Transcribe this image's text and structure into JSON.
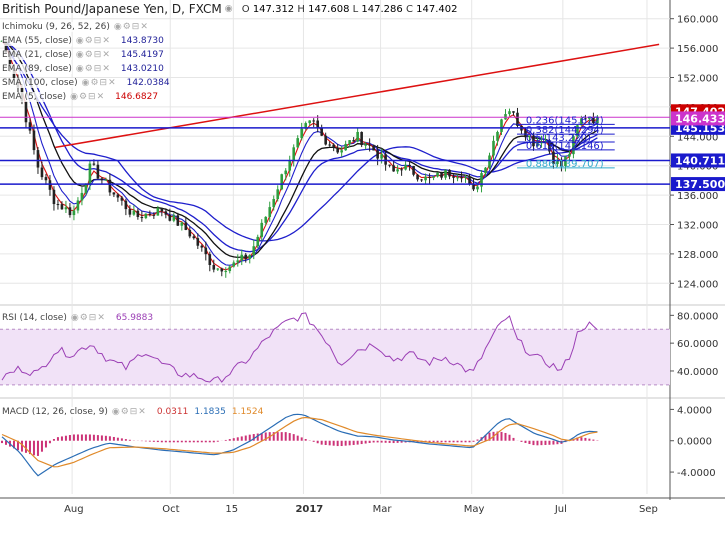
{
  "header": {
    "title": "British Pound/Japanese Yen, D, FXCM",
    "ohlc": {
      "o_label": "O",
      "o": "147.312",
      "h_label": "H",
      "h": "147.608",
      "l_label": "L",
      "l": "147.286",
      "c_label": "C",
      "c": "147.402"
    }
  },
  "legends": {
    "main": [
      {
        "label": "Ichimoku (9, 26, 52, 26)",
        "value": "",
        "color": "#222222"
      },
      {
        "label": "EMA (55, close)",
        "value": "143.8730",
        "color": "#222299"
      },
      {
        "label": "EMA (21, close)",
        "value": "145.4197",
        "color": "#222299"
      },
      {
        "label": "EMA (89, close)",
        "value": "143.0210",
        "color": "#222299"
      },
      {
        "label": "SMA (100, close)",
        "value": "142.0384",
        "color": "#222299"
      },
      {
        "label": "EMA (5, close)",
        "value": "146.6827",
        "color": "#cc0000"
      }
    ],
    "rsi": {
      "label": "RSI (14, close)",
      "value": "65.9883",
      "color": "#444444"
    },
    "macd": {
      "label": "MACD (12, 26, close, 9)",
      "v1": "0.0311",
      "v2": "1.1835",
      "v3": "1.1524",
      "c1": "#cc3333",
      "c2": "#2a6db5",
      "c3": "#e08a2a"
    }
  },
  "chart_data": [
    {
      "type": "candlestick",
      "title": "British Pound/Japanese Yen, D, FXCM",
      "ylim": [
        122,
        162
      ],
      "ticks_y": [
        124,
        128,
        132,
        136,
        140,
        144,
        148,
        152,
        156,
        160
      ],
      "ticks_y_labels": [
        "124.000",
        "128.000",
        "132.000",
        "136.000",
        "140.000",
        "144.000",
        "148.000",
        "152.000",
        "156.000",
        "160.000"
      ],
      "x_tick_labels": [
        "Aug",
        "Oct",
        "15",
        "2017",
        "Mar",
        "May",
        "Jul",
        "Sep"
      ],
      "close_path": [
        [
          0,
          157
        ],
        [
          4,
          150
        ],
        [
          8,
          140
        ],
        [
          12,
          135
        ],
        [
          16,
          133.5
        ],
        [
          20,
          140
        ],
        [
          24,
          137
        ],
        [
          30,
          133
        ],
        [
          36,
          134
        ],
        [
          42,
          131
        ],
        [
          48,
          126
        ],
        [
          52,
          126.5
        ],
        [
          56,
          128
        ],
        [
          60,
          134
        ],
        [
          64,
          140
        ],
        [
          68,
          145
        ],
        [
          70,
          146
        ],
        [
          72,
          144
        ],
        [
          76,
          142
        ],
        [
          80,
          144
        ],
        [
          84,
          142
        ],
        [
          88,
          139
        ],
        [
          90,
          140
        ],
        [
          96,
          138
        ],
        [
          100,
          139
        ],
        [
          104,
          139
        ],
        [
          106,
          136
        ],
        [
          110,
          142
        ],
        [
          112,
          146
        ],
        [
          114,
          148
        ],
        [
          116,
          146
        ],
        [
          120,
          143
        ],
        [
          122,
          144
        ],
        [
          124,
          141
        ],
        [
          126,
          140
        ],
        [
          128,
          142
        ],
        [
          130,
          146
        ],
        [
          132,
          147
        ],
        [
          134,
          146
        ],
        [
          135,
          147.4
        ]
      ],
      "horizontal_levels": [
        {
          "value": 145.153,
          "label": "145.153",
          "color": "#1a1acc"
        },
        {
          "value": 140.711,
          "label": "140.711",
          "color": "#1a1acc"
        },
        {
          "value": 137.5,
          "label": "137.500",
          "color": "#1a1acc"
        },
        {
          "value": 146.6,
          "label": "",
          "color": "#cc33cc"
        }
      ],
      "price_labels": [
        {
          "value": 147.402,
          "label": "147.402",
          "color": "#cc0000"
        },
        {
          "value": 146.433,
          "label": "146.433",
          "color": "#cc33cc"
        }
      ],
      "fib_levels": [
        {
          "ratio": "0.236",
          "value": 145.622,
          "label": "0.236(145.622)",
          "color": "#1a1acc"
        },
        {
          "ratio": "0.382",
          "value": 144.294,
          "label": "0.382(144.294)",
          "color": "#1a1acc"
        },
        {
          "ratio": "0.5",
          "value": 143.22,
          "label": "0.5(143.220)",
          "color": "#1a1acc"
        },
        {
          "ratio": "0.618",
          "value": 142.146,
          "label": "0.618(142.146)",
          "color": "#1a1acc"
        },
        {
          "ratio": "0.886",
          "value": 139.707,
          "label": "0.886(139.707)",
          "color": "#33aacc"
        }
      ],
      "trendline": {
        "from": [
          12,
          142.5
        ],
        "to": [
          148,
          156.5
        ],
        "color": "#dd1111"
      }
    },
    {
      "type": "line",
      "name": "RSI (14, close)",
      "ylim": [
        22,
        86
      ],
      "ticks_y": [
        40,
        60,
        80
      ],
      "ticks_y_labels": [
        "40.0000",
        "60.0000",
        "80.0000"
      ],
      "band": [
        30,
        70
      ],
      "values": [
        [
          0,
          35
        ],
        [
          4,
          42
        ],
        [
          8,
          38
        ],
        [
          12,
          55
        ],
        [
          16,
          52
        ],
        [
          20,
          60
        ],
        [
          24,
          48
        ],
        [
          28,
          42
        ],
        [
          32,
          55
        ],
        [
          36,
          45
        ],
        [
          40,
          38
        ],
        [
          44,
          36
        ],
        [
          48,
          32
        ],
        [
          52,
          40
        ],
        [
          56,
          50
        ],
        [
          60,
          65
        ],
        [
          64,
          75
        ],
        [
          66,
          78
        ],
        [
          68,
          80
        ],
        [
          70,
          74
        ],
        [
          74,
          58
        ],
        [
          76,
          45
        ],
        [
          80,
          55
        ],
        [
          84,
          60
        ],
        [
          88,
          48
        ],
        [
          92,
          52
        ],
        [
          96,
          46
        ],
        [
          100,
          50
        ],
        [
          104,
          42
        ],
        [
          106,
          38
        ],
        [
          110,
          62
        ],
        [
          112,
          72
        ],
        [
          114,
          80
        ],
        [
          116,
          62
        ],
        [
          120,
          50
        ],
        [
          124,
          44
        ],
        [
          126,
          40
        ],
        [
          128,
          52
        ],
        [
          130,
          70
        ],
        [
          132,
          74
        ],
        [
          134,
          68
        ],
        [
          135,
          66
        ]
      ]
    },
    {
      "type": "macd",
      "name": "MACD (12, 26, close, 9)",
      "ylim": [
        -6.8,
        5.2
      ],
      "ticks_y": [
        -4,
        0,
        4
      ],
      "ticks_y_labels": [
        "-4.0000",
        "0.0000",
        "4.0000"
      ],
      "macd": [
        [
          0,
          0.5
        ],
        [
          4,
          -1.5
        ],
        [
          8,
          -4.5
        ],
        [
          12,
          -3
        ],
        [
          16,
          -2
        ],
        [
          20,
          -1
        ],
        [
          24,
          -0.3
        ],
        [
          30,
          -0.8
        ],
        [
          36,
          -1.2
        ],
        [
          42,
          -1.5
        ],
        [
          48,
          -1.8
        ],
        [
          52,
          -1.2
        ],
        [
          56,
          0
        ],
        [
          60,
          1.5
        ],
        [
          64,
          3
        ],
        [
          66,
          3.4
        ],
        [
          68,
          3.3
        ],
        [
          72,
          2.2
        ],
        [
          76,
          1.2
        ],
        [
          80,
          0.6
        ],
        [
          84,
          0.5
        ],
        [
          88,
          0.1
        ],
        [
          92,
          -0.1
        ],
        [
          96,
          -0.4
        ],
        [
          100,
          -0.6
        ],
        [
          104,
          -0.8
        ],
        [
          106,
          -0.9
        ],
        [
          110,
          1.3
        ],
        [
          112,
          2.4
        ],
        [
          114,
          2.9
        ],
        [
          116,
          2.2
        ],
        [
          120,
          0.9
        ],
        [
          124,
          0.2
        ],
        [
          126,
          -0.2
        ],
        [
          128,
          0.1
        ],
        [
          130,
          0.9
        ],
        [
          132,
          1.2
        ],
        [
          134,
          1.15
        ],
        [
          135,
          1.18
        ]
      ],
      "signal": [
        [
          0,
          0.8
        ],
        [
          4,
          -0.2
        ],
        [
          8,
          -2.5
        ],
        [
          12,
          -3.4
        ],
        [
          16,
          -2.8
        ],
        [
          20,
          -1.8
        ],
        [
          24,
          -0.9
        ],
        [
          30,
          -0.8
        ],
        [
          36,
          -1
        ],
        [
          42,
          -1.3
        ],
        [
          48,
          -1.6
        ],
        [
          52,
          -1.5
        ],
        [
          56,
          -0.8
        ],
        [
          60,
          0.4
        ],
        [
          64,
          1.9
        ],
        [
          66,
          2.6
        ],
        [
          68,
          3
        ],
        [
          72,
          2.7
        ],
        [
          76,
          1.9
        ],
        [
          80,
          1.1
        ],
        [
          84,
          0.7
        ],
        [
          88,
          0.4
        ],
        [
          92,
          0.1
        ],
        [
          96,
          -0.2
        ],
        [
          100,
          -0.4
        ],
        [
          104,
          -0.6
        ],
        [
          106,
          -0.7
        ],
        [
          110,
          0.2
        ],
        [
          112,
          1.2
        ],
        [
          114,
          2
        ],
        [
          116,
          2.2
        ],
        [
          120,
          1.5
        ],
        [
          124,
          0.7
        ],
        [
          126,
          0.2
        ],
        [
          128,
          0
        ],
        [
          130,
          0.4
        ],
        [
          132,
          0.9
        ],
        [
          134,
          1.1
        ],
        [
          135,
          1.15
        ]
      ]
    }
  ],
  "colors": {
    "grid": "#e6e6e6",
    "axis": "#555555",
    "bull": "#2e9e3e",
    "bear": "#222222",
    "rsi_band": "#f1e2f7",
    "rsi_line": "#9b3fb5",
    "macd_hist": "#cc3377"
  }
}
